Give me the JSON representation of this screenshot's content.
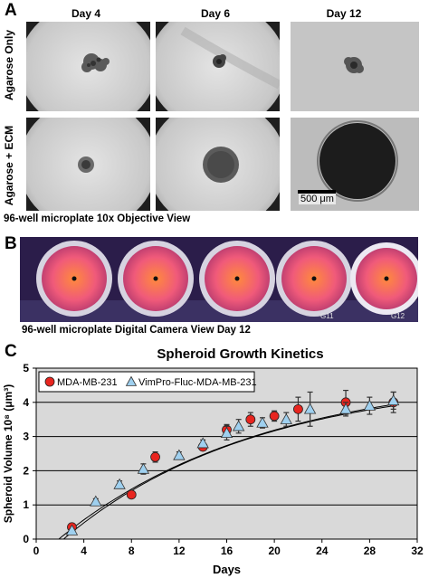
{
  "panelA": {
    "letter": "A",
    "day_labels": [
      "Day 4",
      "Day 6",
      "Day 12"
    ],
    "row_labels": [
      "Agarose Only",
      "Agarose + ECM"
    ],
    "scale_bar": "500 μm",
    "caption": "96-well microplate 10x Objective View"
  },
  "panelB": {
    "letter": "B",
    "caption": "96-well microplate Digital Camera View Day 12",
    "well_labels": [
      "G11",
      "G12"
    ]
  },
  "panelC": {
    "letter": "C"
  },
  "colors": {
    "series1_marker": "#e8251f",
    "series2_marker": "#9fd0ef",
    "plot_bg": "#d9d9d9",
    "well_pink": "#e04a6e"
  },
  "chart_data": {
    "type": "scatter",
    "title": "Spheroid Growth Kinetics",
    "xlabel": "Days",
    "ylabel": "Spheroid Volume 10⁸ (μm³)",
    "xlim": [
      0,
      32
    ],
    "ylim": [
      0,
      5
    ],
    "xticks": [
      0,
      4,
      8,
      12,
      16,
      20,
      24,
      28,
      32
    ],
    "yticks": [
      0,
      1,
      2,
      3,
      4,
      5
    ],
    "grid": "horizontal",
    "legend_position": "top-left",
    "series": [
      {
        "name": "MDA-MB-231",
        "marker": "circle",
        "x": [
          3,
          8,
          10,
          14,
          16,
          18,
          20,
          22,
          26,
          30
        ],
        "y": [
          0.35,
          1.3,
          2.4,
          2.7,
          3.2,
          3.5,
          3.6,
          3.8,
          4.0,
          4.0
        ],
        "err": [
          0.05,
          0.08,
          0.15,
          0.1,
          0.15,
          0.2,
          0.15,
          0.35,
          0.35,
          0.3
        ]
      },
      {
        "name": "VimPro-Fluc-MDA-MB-231",
        "marker": "triangle",
        "x": [
          3,
          5,
          7,
          9,
          12,
          14,
          16,
          17,
          19,
          21,
          23,
          26,
          28,
          30
        ],
        "y": [
          0.25,
          1.1,
          1.6,
          2.05,
          2.45,
          2.8,
          3.1,
          3.3,
          3.4,
          3.5,
          3.8,
          3.8,
          3.9,
          4.05
        ],
        "err": [
          0.05,
          0.08,
          0.1,
          0.15,
          0.1,
          0.1,
          0.2,
          0.2,
          0.15,
          0.2,
          0.5,
          0.2,
          0.25,
          0.25
        ]
      }
    ],
    "fit_curves": [
      {
        "series": "MDA-MB-231",
        "vmax": 4.9,
        "k": 0.058,
        "x0": 1.9
      },
      {
        "series": "VimPro-Fluc-MDA-MB-231",
        "vmax": 4.75,
        "k": 0.062,
        "x0": 2.3
      }
    ]
  }
}
